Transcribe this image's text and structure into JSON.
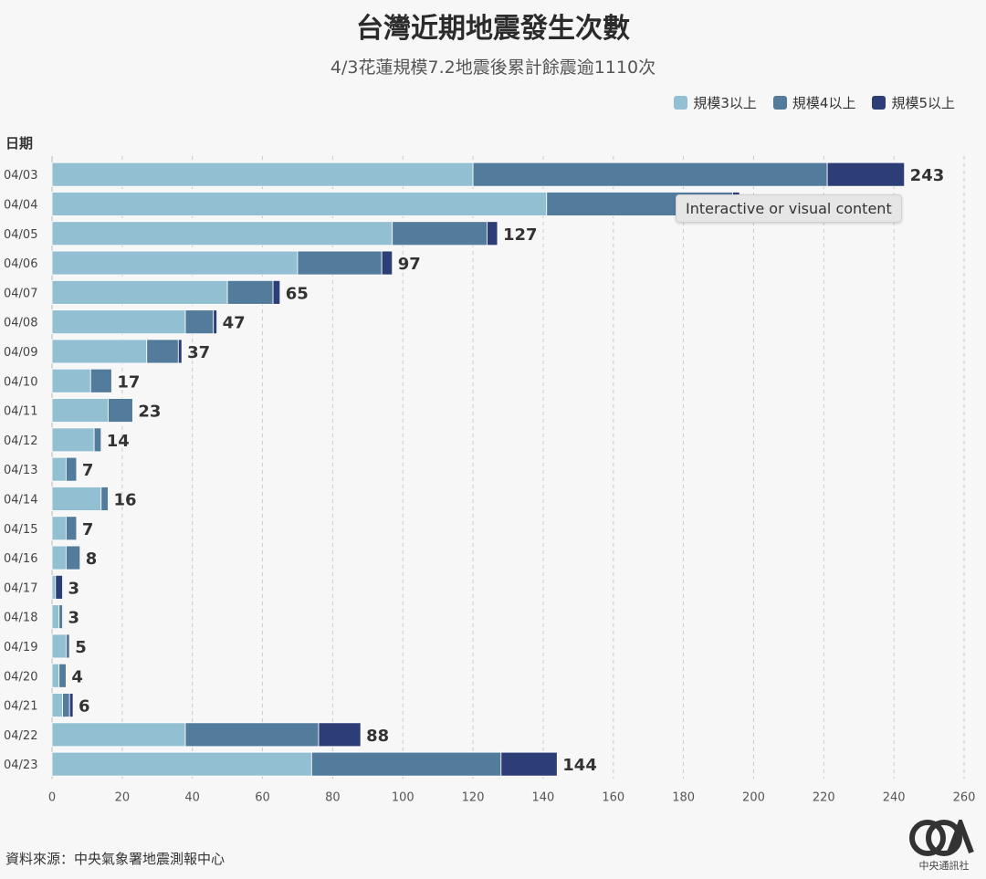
{
  "chart_data": {
    "type": "bar",
    "orientation": "horizontal",
    "stacked": true,
    "title": "台灣近期地震發生次數",
    "subtitle": "4/3花蓮規模7.2地震後累計餘震逾1110次",
    "ylabel": "日期",
    "xlabel": "",
    "xlim": [
      0,
      260
    ],
    "xticks": [
      0,
      20,
      40,
      60,
      80,
      100,
      120,
      140,
      160,
      180,
      200,
      220,
      240,
      260
    ],
    "grid": "vertical-dashed",
    "legend_position": "top-right",
    "categories": [
      "04/03",
      "04/04",
      "04/05",
      "04/06",
      "04/07",
      "04/08",
      "04/09",
      "04/10",
      "04/11",
      "04/12",
      "04/13",
      "04/14",
      "04/15",
      "04/16",
      "04/17",
      "04/18",
      "04/19",
      "04/20",
      "04/21",
      "04/22",
      "04/23"
    ],
    "series": [
      {
        "name": "規模3以上",
        "color": "#93bfd3",
        "values": [
          120,
          141,
          97,
          70,
          50,
          38,
          27,
          11,
          16,
          12,
          4,
          14,
          4,
          4,
          1,
          2,
          4,
          2,
          3,
          38,
          74
        ]
      },
      {
        "name": "規模4以上",
        "color": "#527b9c",
        "values": [
          101,
          53,
          27,
          24,
          13,
          8,
          9,
          6,
          7,
          2,
          3,
          2,
          3,
          4,
          0,
          1,
          1,
          2,
          2,
          38,
          54
        ]
      },
      {
        "name": "規模5以上",
        "color": "#2d3d75",
        "values": [
          22,
          2,
          3,
          3,
          2,
          1,
          1,
          0,
          0,
          0,
          0,
          0,
          0,
          0,
          2,
          0,
          0,
          0,
          1,
          12,
          16
        ]
      }
    ],
    "totals": [
      243,
      null,
      127,
      97,
      65,
      47,
      37,
      17,
      23,
      14,
      7,
      16,
      7,
      8,
      3,
      3,
      5,
      4,
      6,
      88,
      144
    ]
  },
  "tooltip": {
    "text": "Interactive or visual content"
  },
  "source": {
    "text": "資料來源：中央氣象署地震測報中心"
  },
  "logo": {
    "text": "CNA",
    "caption": "中央通訊社"
  }
}
